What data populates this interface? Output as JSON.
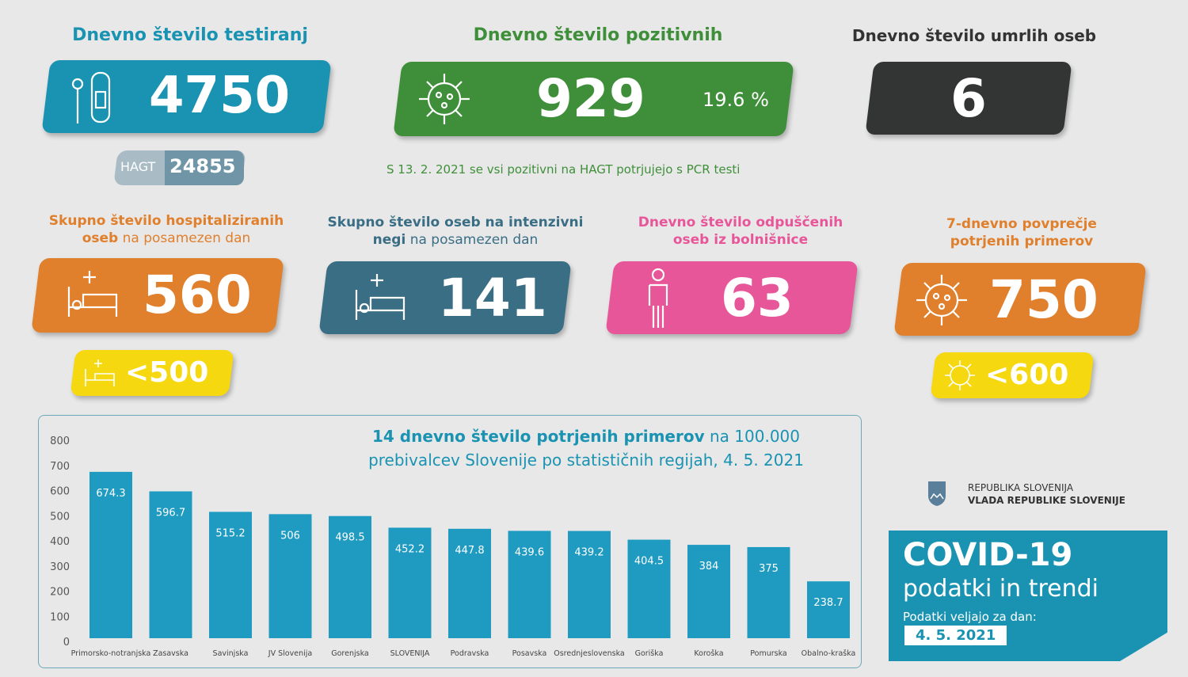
{
  "tests": {
    "title": "Dnevno število testiranj",
    "value": "4750",
    "hagt_label": "HAGT",
    "hagt_value": "24855",
    "color": "#1a93b3"
  },
  "positive": {
    "title": "Dnevno število pozitivnih",
    "value": "929",
    "percent": "19.6 %",
    "note": "S 13. 2. 2021 se vsi pozitivni na HAGT potrjujejo s PCR testi",
    "color": "#3f8f3a"
  },
  "deaths": {
    "title": "Dnevno število umrlih oseb",
    "value": "6",
    "color": "#333535"
  },
  "hospital": {
    "title_bold1": "Skupno število hospitaliziranih",
    "title_bold2": "oseb",
    "title_light": " na posamezen dan",
    "value": "560",
    "threshold": "<500",
    "color": "#e07f2c"
  },
  "icu": {
    "title_bold1": "Skupno število oseb na intenzivni",
    "title_bold2": "negi",
    "title_light": " na posamezen dan",
    "value": "141",
    "color": "#3a6e85"
  },
  "discharged": {
    "title1": "Dnevno število odpuščenih",
    "title2": "oseb iz bolnišnice",
    "value": "63",
    "color": "#e8569a"
  },
  "avg7": {
    "title1": "7-dnevno povprečje",
    "title2": "potrjenih primerov",
    "value": "750",
    "threshold": "<600",
    "color": "#e07f2c"
  },
  "threshold_color": "#f5d80f",
  "logo": {
    "line1": "REPUBLIKA SLOVENIJA",
    "line2": "VLADA REPUBLIKE SLOVENIJE"
  },
  "footer": {
    "title": "COVID-19",
    "subtitle": "podatki in trendi",
    "date_label": "Podatki veljajo za dan:",
    "date": "4. 5. 2021"
  },
  "chart_data": {
    "type": "bar",
    "title_bold": "14 dnevno število potrjenih primerov",
    "title_rest1": " na 100.000",
    "title_line2": "prebivalcev Slovenije po statističnih regijah, 4. 5. 2021",
    "categories": [
      "Primorsko-notranjska",
      "Zasavska",
      "Savinjska",
      "JV Slovenija",
      "Gorenjska",
      "SLOVENIJA",
      "Podravska",
      "Posavska",
      "Osrednjeslovenska",
      "Goriška",
      "Koroška",
      "Pomurska",
      "Obalno-kraška"
    ],
    "values": [
      674.3,
      596.7,
      515.2,
      506,
      498.5,
      452.2,
      447.8,
      439.6,
      439.2,
      404.5,
      384,
      375,
      238.7
    ],
    "labels": [
      "674.3",
      "596.7",
      "515.2",
      "506",
      "498.5",
      "452.2",
      "447.8",
      "439.6",
      "439.2",
      "404.5",
      "384",
      "375",
      "238.7"
    ],
    "yticks": [
      "0",
      "100",
      "200",
      "300",
      "400",
      "500",
      "600",
      "700",
      "800"
    ],
    "ylim": [
      0,
      800
    ],
    "grid": false,
    "bar_color": "#1f9bc2"
  }
}
